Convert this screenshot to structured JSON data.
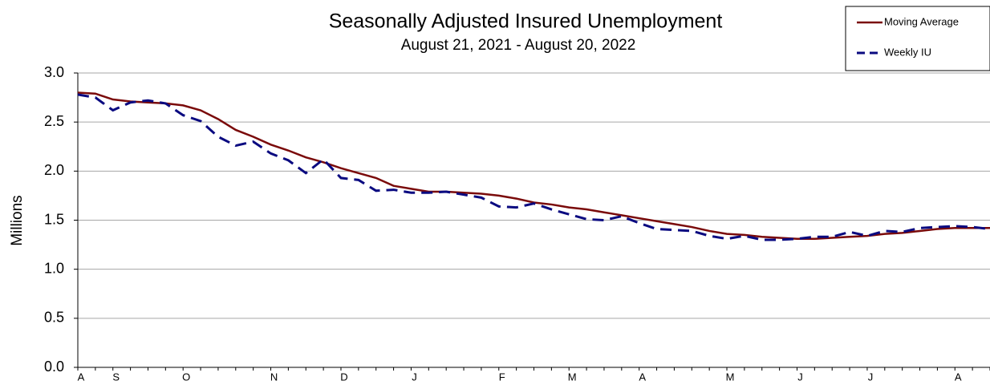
{
  "chart_data": {
    "type": "line",
    "title": "Seasonally Adjusted Insured Unemployment",
    "subtitle": "August 21, 2021 - August 20, 2022",
    "y_label": "Millions",
    "categories": [
      "A",
      null,
      "S",
      null,
      null,
      null,
      "O",
      null,
      null,
      null,
      null,
      "N",
      null,
      null,
      null,
      "D",
      null,
      null,
      null,
      "J",
      null,
      null,
      null,
      null,
      "F",
      null,
      null,
      null,
      "M",
      null,
      null,
      null,
      "A",
      null,
      null,
      null,
      null,
      "M",
      null,
      null,
      null,
      "J",
      null,
      null,
      null,
      "J",
      null,
      null,
      null,
      null,
      "A",
      null,
      null
    ],
    "series": [
      {
        "name": "Moving Average",
        "color": "#7a0a0a",
        "line_style": "solid",
        "values": [
          2.8,
          2.79,
          2.73,
          2.71,
          2.7,
          2.69,
          2.67,
          2.62,
          2.53,
          2.42,
          2.35,
          2.27,
          2.21,
          2.14,
          2.09,
          2.03,
          1.98,
          1.93,
          1.85,
          1.82,
          1.79,
          1.79,
          1.78,
          1.77,
          1.75,
          1.72,
          1.68,
          1.66,
          1.63,
          1.61,
          1.58,
          1.55,
          1.52,
          1.49,
          1.46,
          1.43,
          1.39,
          1.36,
          1.35,
          1.33,
          1.32,
          1.31,
          1.31,
          1.32,
          1.33,
          1.34,
          1.36,
          1.37,
          1.39,
          1.41,
          1.42,
          1.42,
          1.42
        ]
      },
      {
        "name": "Weekly IU",
        "color": "#0a0a80",
        "line_style": "dashed",
        "values": [
          2.78,
          2.75,
          2.62,
          2.7,
          2.72,
          2.69,
          2.57,
          2.51,
          2.35,
          2.26,
          2.3,
          2.18,
          2.11,
          1.98,
          2.12,
          1.93,
          1.91,
          1.8,
          1.81,
          1.78,
          1.78,
          1.79,
          1.76,
          1.73,
          1.64,
          1.63,
          1.67,
          1.61,
          1.56,
          1.51,
          1.5,
          1.54,
          1.47,
          1.41,
          1.4,
          1.39,
          1.34,
          1.31,
          1.34,
          1.3,
          1.3,
          1.31,
          1.33,
          1.33,
          1.38,
          1.34,
          1.39,
          1.38,
          1.42,
          1.43,
          1.44,
          1.43,
          1.41
        ]
      }
    ],
    "ylim": [
      0,
      3
    ],
    "yticks": [
      {
        "value": 0,
        "label": "0.0"
      },
      0.5,
      {
        "value": 1,
        "label": "1.0"
      },
      1.5,
      {
        "value": 2,
        "label": "2.0"
      },
      2.5,
      {
        "value": 3,
        "label": "3.0"
      }
    ],
    "grid": true,
    "legend": "upper right"
  }
}
